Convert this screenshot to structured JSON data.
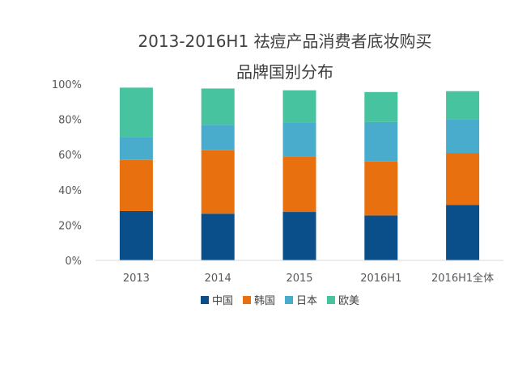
{
  "chart_data": {
    "type": "bar",
    "stacked": true,
    "title_lines": [
      "2013-2016H1 祛痘产品消费者底妆购买",
      "品牌国别分布"
    ],
    "categories": [
      "2013",
      "2014",
      "2015",
      "2016H1",
      "2016H1全体"
    ],
    "series": [
      {
        "name": "中国",
        "color": "#0b4f8a",
        "values": [
          28,
          26.5,
          27.5,
          25.5,
          31.5
        ]
      },
      {
        "name": "韩国",
        "color": "#e8700f",
        "values": [
          29,
          36,
          31.5,
          30.5,
          29.5
        ]
      },
      {
        "name": "日本",
        "color": "#4aaccc",
        "values": [
          13,
          14.5,
          19,
          22.5,
          19
        ]
      },
      {
        "name": "欧美",
        "color": "#47c3a0",
        "values": [
          28,
          20.5,
          18.5,
          17,
          16
        ]
      }
    ],
    "y_ticks": [
      "0%",
      "20%",
      "40%",
      "60%",
      "80%",
      "100%"
    ],
    "ylim": [
      0,
      100
    ],
    "grid": false,
    "legend_position": "bottom"
  }
}
